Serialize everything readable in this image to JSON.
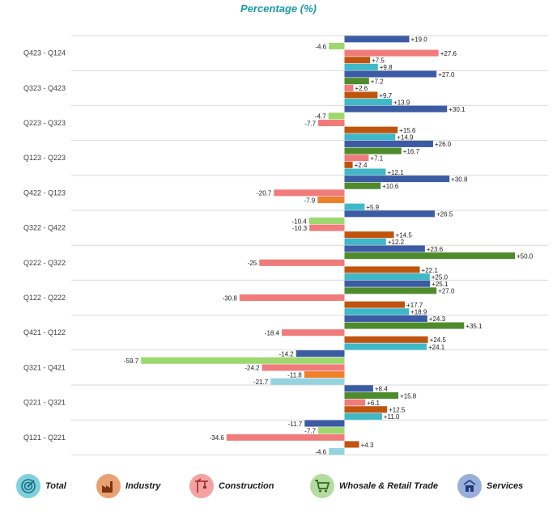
{
  "chart_data": {
    "type": "bar",
    "title": "Percentage (%)",
    "orientation": "horizontal",
    "categories": [
      "Q423 - Q124",
      "Q323 - Q423",
      "Q223 - Q323",
      "Q123 - Q223",
      "Q422 - Q123",
      "Q322 - Q422",
      "Q222 - Q322",
      "Q122 - Q222",
      "Q421 - Q122",
      "Q321 - Q421",
      "Q221 - Q321",
      "Q121 - Q221"
    ],
    "series": [
      {
        "name": "Services",
        "color": "#3b5ba5",
        "values": [
          19.0,
          27.0,
          30.1,
          26.0,
          30.8,
          26.5,
          23.6,
          25.1,
          24.3,
          -14.2,
          8.4,
          -11.7
        ]
      },
      {
        "name": "Whosale & Retail Trade",
        "color": "#9dd86f",
        "neg_color": "#9dd86f",
        "pos_color": "#4e8b2c",
        "values": [
          -4.6,
          7.2,
          -4.7,
          16.7,
          10.6,
          -10.4,
          50.0,
          27.0,
          35.1,
          -59.7,
          15.8,
          -7.7
        ]
      },
      {
        "name": "Construction",
        "color": "#f07b7b",
        "values": [
          27.6,
          2.6,
          -7.7,
          7.1,
          -20.7,
          -10.3,
          -25,
          -30.8,
          -18.4,
          -24.2,
          6.1,
          -34.6
        ]
      },
      {
        "name": "Industry",
        "color": "#c0540f",
        "neg_color": "#f07f2a",
        "pos_color": "#c0540f",
        "values": [
          7.5,
          9.7,
          15.6,
          2.4,
          -7.9,
          14.5,
          22.1,
          17.7,
          24.5,
          -11.8,
          12.5,
          4.3
        ]
      },
      {
        "name": "Total",
        "color": "#3fb8c8",
        "neg_color": "#95d3de",
        "pos_color": "#3fb8c8",
        "values": [
          9.8,
          13.9,
          14.9,
          12.1,
          5.9,
          12.2,
          25.0,
          18.9,
          24.1,
          -21.7,
          11.0,
          -4.6
        ]
      }
    ],
    "value_labels": [
      [
        "+19.0",
        "-4.6",
        "+27.6",
        "+7.5",
        "+9.8"
      ],
      [
        "+27.0",
        "+7.2",
        "+2.6",
        "+9.7",
        "+13.9"
      ],
      [
        "+30.1",
        "-4.7",
        "-7.7",
        "+15.6",
        "+14.9"
      ],
      [
        "+26.0",
        "+16.7",
        "+7.1",
        "+2.4",
        "+12.1"
      ],
      [
        "+30.8",
        "+10.6",
        "-20.7",
        "-7.9",
        "+5.9"
      ],
      [
        "+26.5",
        "-10.4",
        "-10.3",
        "+14.5",
        "+12.2"
      ],
      [
        "+23.6",
        "+50.0",
        "-25",
        "+22.1",
        "+25.0"
      ],
      [
        "+25.1",
        "+27.0",
        "-30.8",
        "+17.7",
        "+18.9"
      ],
      [
        "+24.3",
        "+35.1",
        "-18.4",
        "+24.5",
        "+24.1"
      ],
      [
        "-14.2",
        "-59.7",
        "-24.2",
        "-11.8",
        "-21.7"
      ],
      [
        "+8.4",
        "+15.8",
        "+6.1",
        "+12.5",
        "+11.0"
      ],
      [
        "-11.7",
        "-7.7",
        "-34.6",
        "+4.3",
        "-4.6"
      ]
    ],
    "legend_position": "bottom",
    "grid": true
  },
  "legend": [
    {
      "label": "Total",
      "icon": "target-icon",
      "bg": "#7fd0dc"
    },
    {
      "label": "Industry",
      "icon": "factory-icon",
      "bg": "#e9a173"
    },
    {
      "label": "Construction",
      "icon": "crane-icon",
      "bg": "#f3a3a3"
    },
    {
      "label": "Whosale & Retail Trade",
      "icon": "cart-icon",
      "bg": "#b6dba1"
    },
    {
      "label": "Services",
      "icon": "services-icon",
      "bg": "#9aaedb"
    }
  ]
}
